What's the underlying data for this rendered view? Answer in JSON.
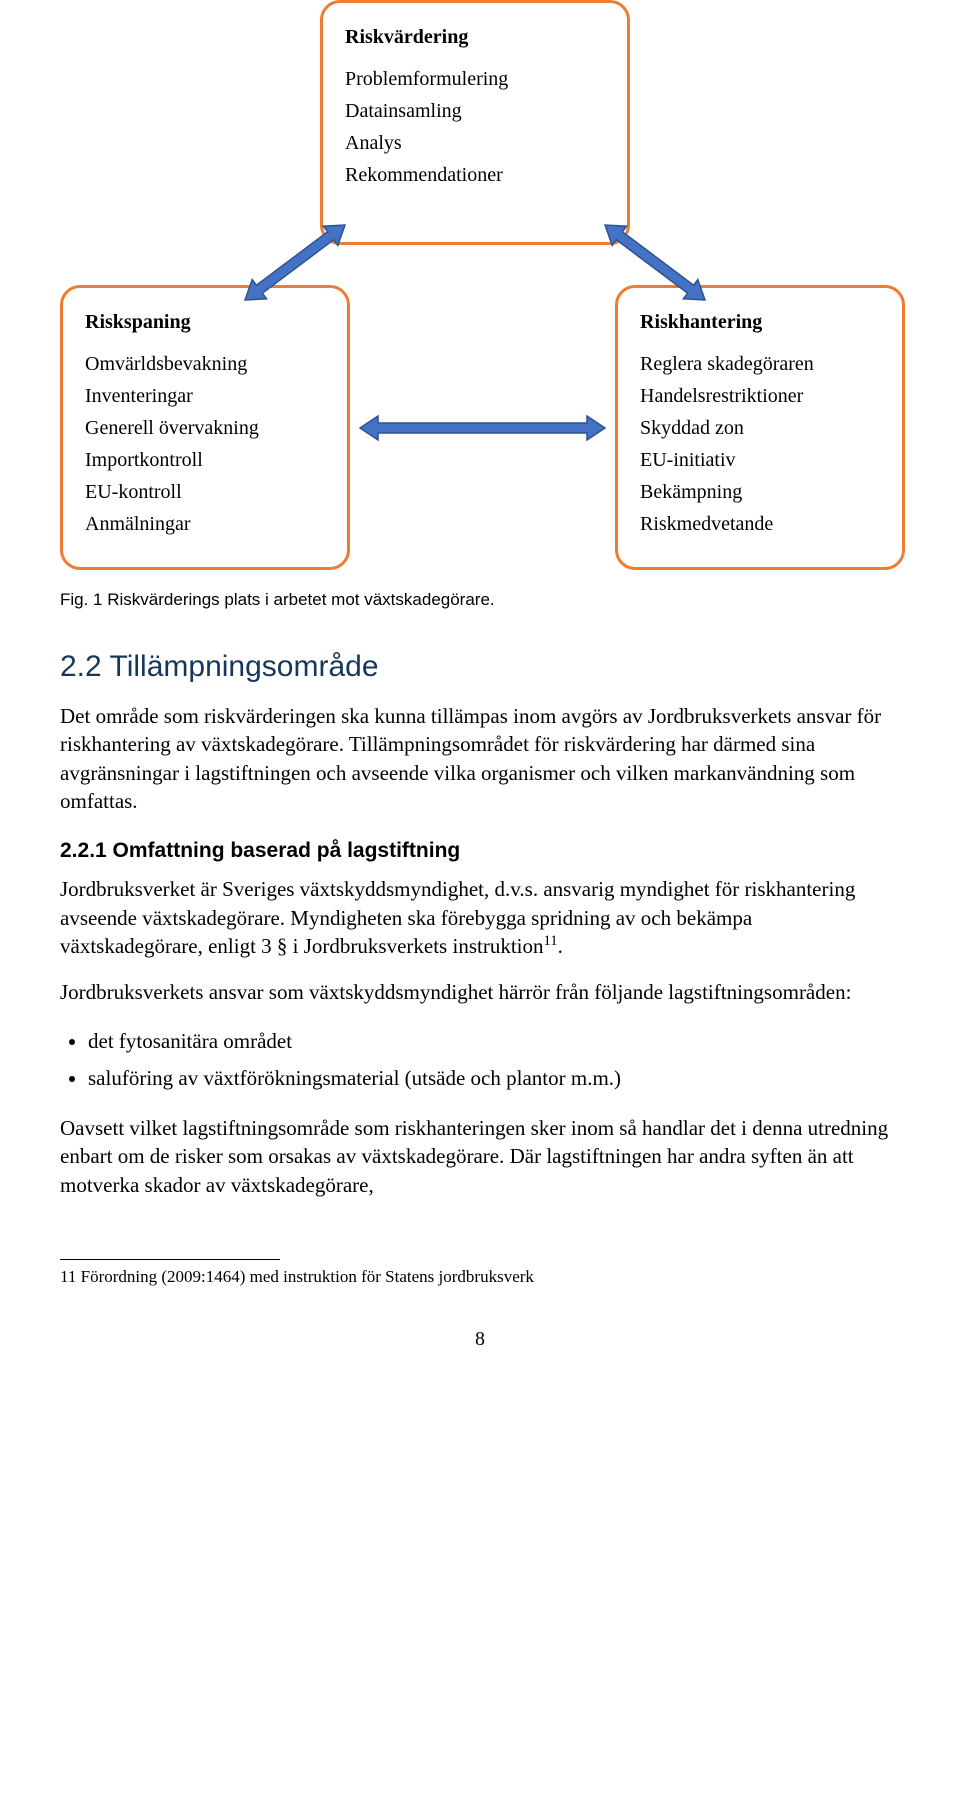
{
  "diagram": {
    "border_color": "#ed7d31",
    "arrow_fill": "#4472c4",
    "arrow_stroke": "#2f528f",
    "top_box": {
      "title": "Riskvärdering",
      "items": [
        "Problemformulering",
        "Datainsamling",
        "Analys",
        "Rekommendationer"
      ]
    },
    "left_box": {
      "title": "Riskspaning",
      "items": [
        "Omvärldsbevakning",
        "Inventeringar",
        "Generell övervakning",
        "Importkontroll",
        "EU-kontroll",
        "Anmälningar"
      ]
    },
    "right_box": {
      "title": "Riskhantering",
      "items": [
        "Reglera skadegöraren",
        "Handelsrestriktioner",
        "Skyddad zon",
        "EU-initiativ",
        "Bekämpning",
        "Riskmedvetande"
      ]
    }
  },
  "caption": "Fig. 1  Riskvärderings plats i arbetet mot växtskadegörare.",
  "section_heading": "2.2   Tillämpningsområde",
  "para1": "Det område som riskvärderingen ska kunna tillämpas inom avgörs av Jordbruks­verkets ansvar för riskhantering av växtskadegörare. Tillämpningsområdet för riskvärdering har därmed sina avgränsningar i lagstiftningen och avseende vilka organismer och vilken markanvändning som omfattas.",
  "subsection_heading": "2.2.1   Omfattning baserad på lagstiftning",
  "para2_a": "Jordbruksverket är Sveriges växtskyddsmyndighet, d.v.s. ansvarig myndighet för riskhantering avseende växtskadegörare. Myndigheten ska förebygga spridning av och bekämpa växtskadegörare, enligt 3 § i Jordbruksverkets instruktion",
  "para2_sup": "11",
  "para2_b": ".",
  "para3": "Jordbruksverkets ansvar som växtskyddsmyndighet härrör från följande lagstiftningsområden:",
  "bullets": [
    "det fytosanitära området",
    "saluföring av växtförökningsmaterial (utsäde och plantor m.m.)"
  ],
  "para4": "Oavsett vilket lagstiftningsområde som riskhanteringen sker inom så handlar det i denna utredning enbart om de risker som orsakas av växtskadegörare. Där lag­stiftningen har andra syften än att motverka skador av växtskadegörare,",
  "footnote": "11 Förordning (2009:1464) med instruktion för Statens jordbruksverk",
  "page_number": "8"
}
